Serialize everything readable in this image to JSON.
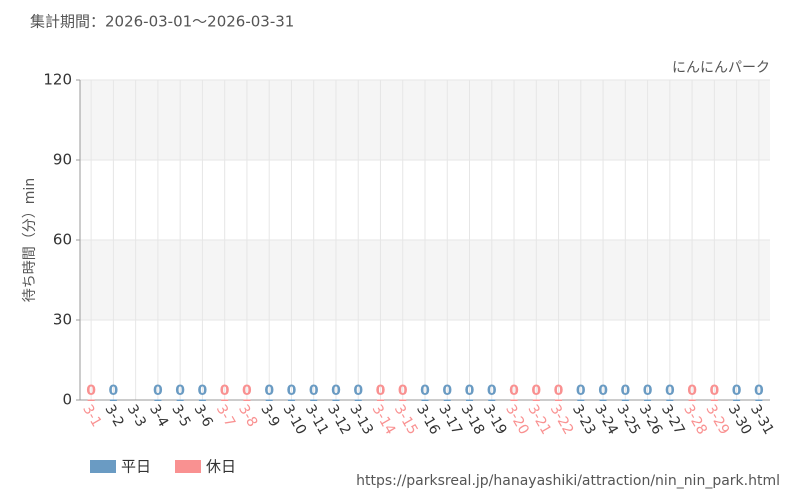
{
  "chart_data": {
    "type": "bar",
    "subtitle": "集計期間：2026-03-01～2026-03-31",
    "title": "にんにんパーク",
    "y_label": "待ち時間（分）min",
    "source": "https://parksreal.jp/hanayashiki/attraction/nin_nin_park.html",
    "categories": [
      "3-1",
      "3-2",
      "3-3",
      "3-4",
      "3-5",
      "3-6",
      "3-7",
      "3-8",
      "3-9",
      "3-10",
      "3-11",
      "3-12",
      "3-13",
      "3-14",
      "3-15",
      "3-16",
      "3-17",
      "3-18",
      "3-19",
      "3-20",
      "3-21",
      "3-22",
      "3-23",
      "3-24",
      "3-25",
      "3-26",
      "3-27",
      "3-28",
      "3-29",
      "3-30",
      "3-31"
    ],
    "series": [
      {
        "name": "平日",
        "color": "#6a9bc3",
        "values": [
          null,
          0,
          null,
          0,
          0,
          0,
          null,
          null,
          0,
          0,
          0,
          0,
          0,
          null,
          null,
          0,
          0,
          0,
          0,
          null,
          null,
          null,
          0,
          0,
          0,
          0,
          0,
          null,
          null,
          0,
          0
        ]
      },
      {
        "name": "休日",
        "color": "#f99191",
        "values": [
          0,
          null,
          null,
          null,
          null,
          null,
          0,
          0,
          null,
          null,
          null,
          null,
          null,
          0,
          0,
          null,
          null,
          null,
          null,
          0,
          0,
          0,
          null,
          null,
          null,
          null,
          null,
          0,
          0,
          null,
          null
        ]
      }
    ],
    "ylim": [
      0,
      120
    ],
    "yticks": [
      0,
      30,
      60,
      90,
      120
    ],
    "grid": true
  }
}
